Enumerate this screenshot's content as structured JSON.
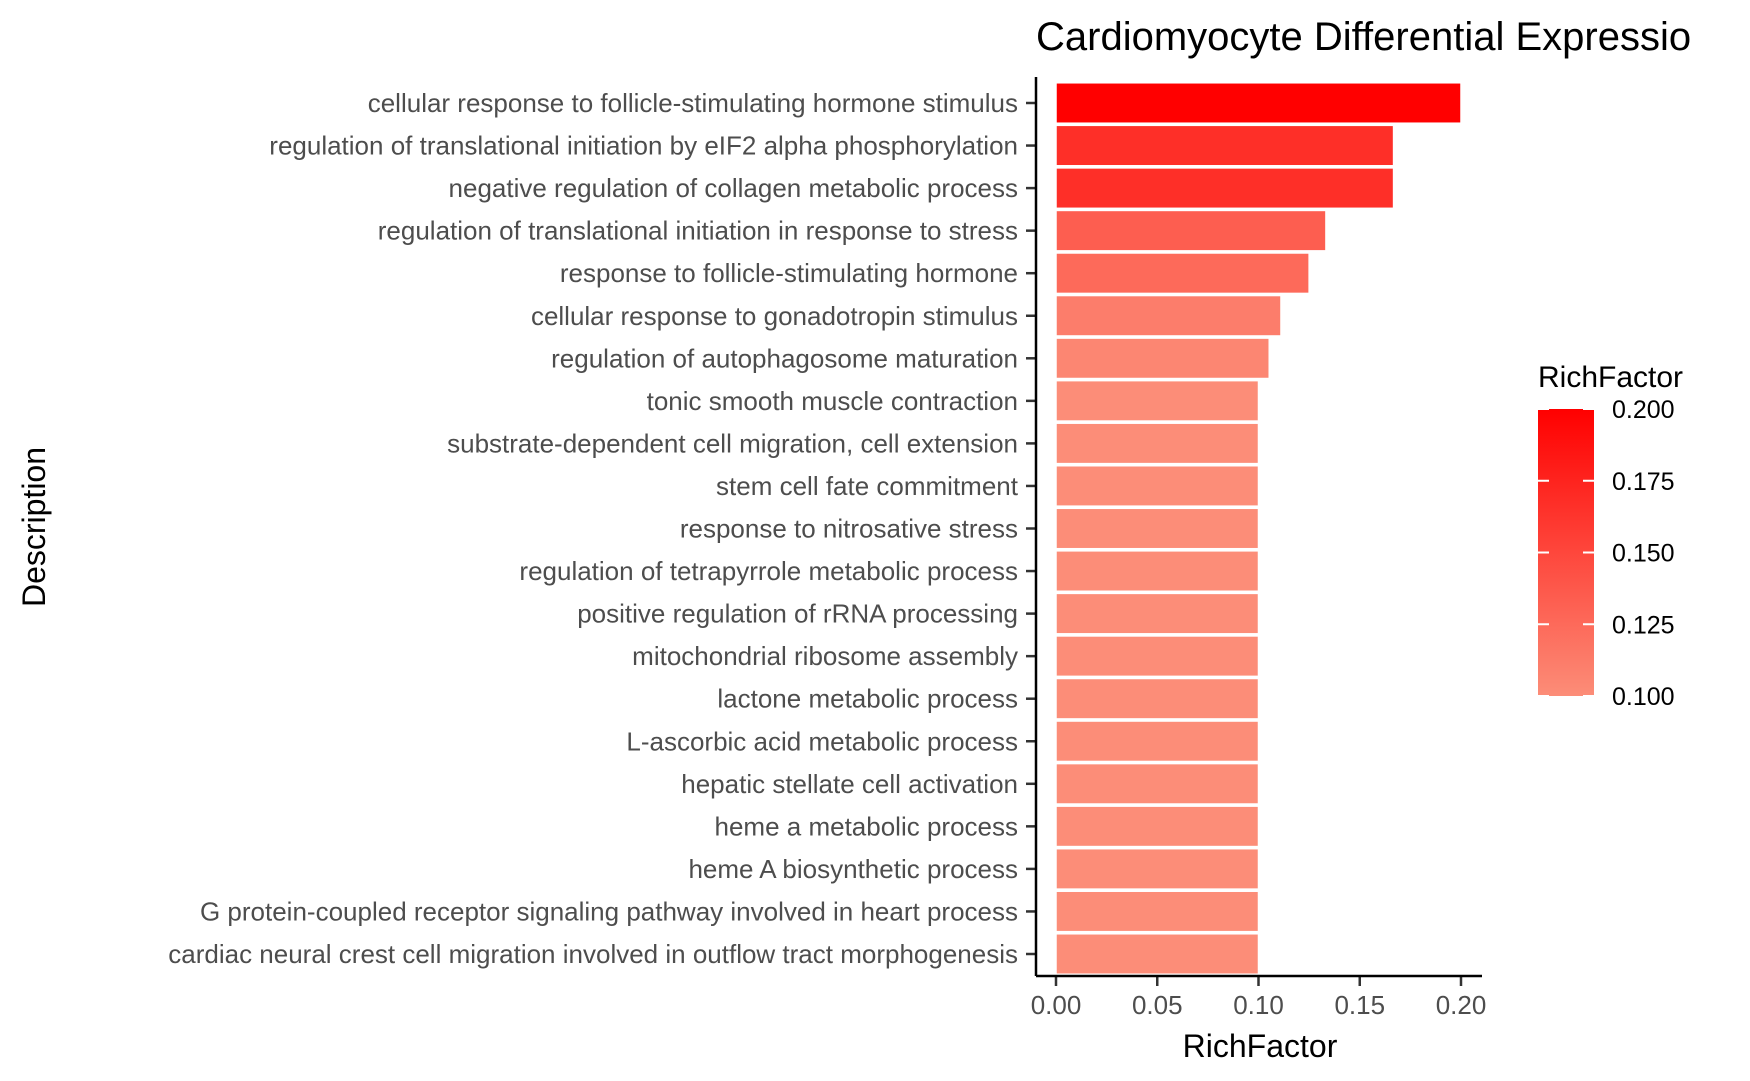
{
  "chart_data": {
    "type": "bar",
    "orientation": "horizontal",
    "title": "Cardiomyocyte Differential Expressio",
    "xlabel": "RichFactor",
    "ylabel": "Description",
    "xlim": [
      0,
      0.2
    ],
    "x_ticks": [
      "0.00",
      "0.05",
      "0.10",
      "0.15",
      "0.20"
    ],
    "x_tick_values": [
      0,
      0.05,
      0.1,
      0.15,
      0.2
    ],
    "grid": false,
    "legend": {
      "title": "RichFactor",
      "placement": "right",
      "type": "colorbar",
      "labels": [
        "0.200",
        "0.175",
        "0.150",
        "0.125",
        "0.100"
      ],
      "values": [
        0.2,
        0.175,
        0.15,
        0.125,
        0.1
      ],
      "low_color": "#fc8d78",
      "high_color": "#ff0000"
    },
    "categories": [
      "cellular response to follicle-stimulating hormone stimulus",
      "regulation of translational initiation by eIF2 alpha phosphorylation",
      "negative regulation of collagen metabolic process",
      "regulation of translational initiation in response to stress",
      "response to follicle-stimulating hormone",
      "cellular response to gonadotropin stimulus",
      "regulation of autophagosome maturation",
      "tonic smooth muscle contraction",
      "substrate-dependent cell migration, cell extension",
      "stem cell fate commitment",
      "response to nitrosative stress",
      "regulation of tetrapyrrole metabolic process",
      "positive regulation of rRNA processing",
      "mitochondrial ribosome assembly",
      "lactone metabolic process",
      "L-ascorbic acid metabolic process",
      "hepatic stellate cell activation",
      "heme a metabolic process",
      "heme A biosynthetic process",
      "G protein-coupled receptor signaling pathway involved in heart process",
      "cardiac neural crest cell migration involved in outflow tract morphogenesis"
    ],
    "values": [
      0.2,
      0.1667,
      0.1667,
      0.1333,
      0.125,
      0.1111,
      0.1053,
      0.1,
      0.1,
      0.1,
      0.1,
      0.1,
      0.1,
      0.1,
      0.1,
      0.1,
      0.1,
      0.1,
      0.1,
      0.1,
      0.1
    ]
  }
}
